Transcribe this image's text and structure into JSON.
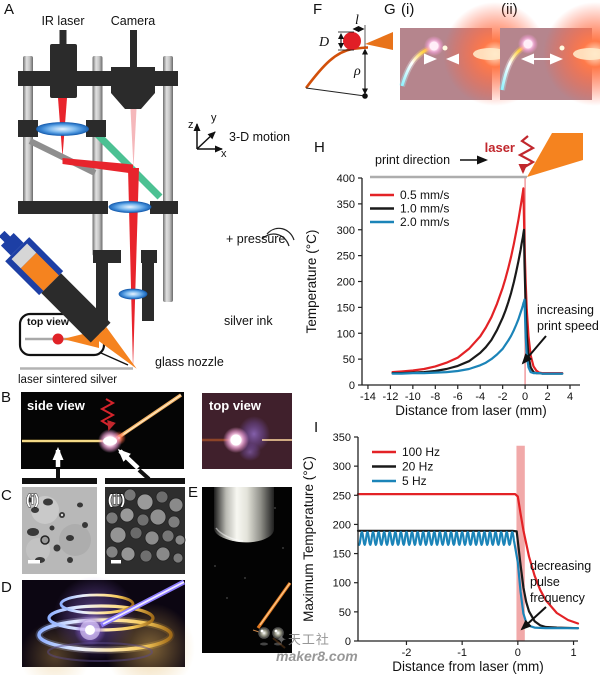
{
  "panels": {
    "A": {
      "label": "A",
      "ir_laser": "IR laser",
      "camera": "Camera",
      "motion": "3-D motion",
      "axis_z": "z",
      "axis_y": "y",
      "axis_x": "x",
      "top_view": "top view",
      "pressure": "+ pressure",
      "silver_ink": "silver ink",
      "glass_nozzle": "glass nozzle",
      "substrate": "laser sintered silver"
    },
    "B": {
      "label": "B",
      "side_view": "side view",
      "top_view": "top view"
    },
    "C": {
      "label": "C",
      "i": "(i)",
      "ii": "(ii)"
    },
    "D": {
      "label": "D"
    },
    "E": {
      "label": "E"
    },
    "F": {
      "label": "F",
      "dim_l": "l",
      "dim_d": "D",
      "dim_rho": "ρ"
    },
    "G": {
      "label": "G",
      "i": "(i)",
      "ii": "(ii)"
    },
    "H": {
      "label": "H",
      "laser": "laser",
      "print_direction": "print direction",
      "annotation_line1": "increasing",
      "annotation_line2": "print speed"
    },
    "I": {
      "label": "I",
      "annotation_line1": "decreasing",
      "annotation_line2": "pulse",
      "annotation_line3": "frequency"
    }
  },
  "watermark": {
    "icon": "✦",
    "line1": "天工社",
    "line2": "maker8.com"
  },
  "colors": {
    "red": "#e32226",
    "black": "#1a1a1a",
    "blue": "#1b84b8",
    "crimson": "#c1272d",
    "orange": "#f5831f",
    "laser_line": "#f2a2a5",
    "laser_band": "#e87070"
  },
  "chart_data": [
    {
      "id": "H",
      "type": "line",
      "xlabel": "Distance from laser (mm)",
      "ylabel": "Temperature (°C)",
      "xlim": [
        -14.53,
        4.89
      ],
      "ylim": [
        0,
        400
      ],
      "xticks": [
        -14,
        -12,
        -10,
        -8,
        -6,
        -4,
        -2,
        0,
        2,
        4
      ],
      "yticks": [
        0,
        50,
        100,
        150,
        200,
        250,
        300,
        350,
        400
      ],
      "grid": false,
      "legend_position": "top-left",
      "laser_line": {
        "x": 0,
        "color": "#f2a2a5"
      },
      "x": [
        -11.8,
        -11,
        -10,
        -9,
        -8,
        -7,
        -6,
        -5,
        -4,
        -3.5,
        -3,
        -2.5,
        -2,
        -1.75,
        -1.5,
        -1.25,
        -1,
        -0.8,
        -0.6,
        -0.4,
        -0.3,
        -0.2,
        -0.15,
        -0.1,
        -0.05,
        0.05,
        0.15,
        0.3,
        0.5,
        0.75,
        1,
        1.25,
        1.5,
        2,
        2.5,
        3,
        3.3
      ],
      "series": [
        {
          "name": "0.5 mm/s",
          "color": "#e32226",
          "y": [
            25,
            26,
            28,
            31,
            36,
            43,
            53,
            70,
            94,
            111,
            131,
            157,
            188,
            206,
            226,
            248,
            273,
            295,
            319,
            345,
            358,
            373,
            380,
            321,
            273,
            197,
            145,
            94,
            57,
            36,
            28,
            24,
            23,
            23,
            23,
            23,
            23
          ]
        },
        {
          "name": "1.0 mm/s",
          "color": "#1a1a1a",
          "y": [
            23,
            23,
            24,
            25,
            27,
            31,
            37,
            46,
            62,
            73,
            87,
            106,
            130,
            144,
            160,
            178,
            199,
            218,
            239,
            261,
            274,
            286,
            293,
            300,
            236,
            148,
            97,
            56,
            34,
            25,
            23,
            23,
            22,
            22,
            22,
            22,
            22
          ]
        },
        {
          "name": "2.0 mm/s",
          "color": "#1b84b8",
          "y": [
            22,
            22,
            23,
            23,
            24,
            25,
            27,
            31,
            38,
            43,
            50,
            59,
            70,
            78,
            86,
            95,
            106,
            116,
            127,
            140,
            146,
            154,
            158,
            161,
            165,
            92,
            56,
            34,
            25,
            23,
            23,
            23,
            22,
            22,
            22,
            22,
            22
          ]
        }
      ]
    },
    {
      "id": "I",
      "type": "line",
      "xlabel": "Distance from laser (mm)",
      "ylabel": "Maximum Temperature (°C)",
      "xlim": [
        -2.87,
        1.08
      ],
      "ylim": [
        0,
        350
      ],
      "xticks": [
        -2,
        -1,
        0,
        1
      ],
      "yticks": [
        0,
        50,
        100,
        150,
        200,
        250,
        300,
        350
      ],
      "grid": false,
      "legend_position": "top-left",
      "laser_band": {
        "center_x": 0.05,
        "width_mm": 0.15,
        "top_temp": 335,
        "color": "#e87070",
        "opacity": 0.6
      },
      "series": [
        {
          "name": "100 Hz",
          "color": "#e32226",
          "x": [
            -2.87,
            -0.15,
            -0.05,
            0,
            0.05,
            0.1,
            0.2,
            0.3,
            0.4,
            0.5,
            0.7,
            0.9,
            1.08
          ],
          "y": [
            252,
            252,
            252,
            248,
            218,
            190,
            145,
            112,
            88,
            70,
            48,
            36,
            30
          ]
        },
        {
          "name": "20 Hz",
          "color": "#1a1a1a",
          "x": [
            -2.87,
            -0.1,
            -0.02,
            0.05,
            0.1,
            0.15,
            0.2,
            0.3,
            0.4,
            0.5,
            0.7,
            1.08
          ],
          "y": [
            189,
            189,
            188,
            130,
            92,
            67,
            51,
            34,
            27,
            24,
            23,
            22
          ]
        },
        {
          "name": "5 Hz",
          "color": "#1b84b8",
          "osc": {
            "from": -2.85,
            "to": -0.06,
            "mean": 176,
            "amplitude": 11,
            "period": 0.1
          },
          "x": [
            0,
            0.05,
            0.1,
            0.15,
            0.2,
            0.3,
            0.5,
            0.8,
            1.08
          ],
          "y": [
            135,
            84,
            47,
            32,
            26,
            23,
            22,
            22,
            22
          ]
        }
      ]
    }
  ]
}
